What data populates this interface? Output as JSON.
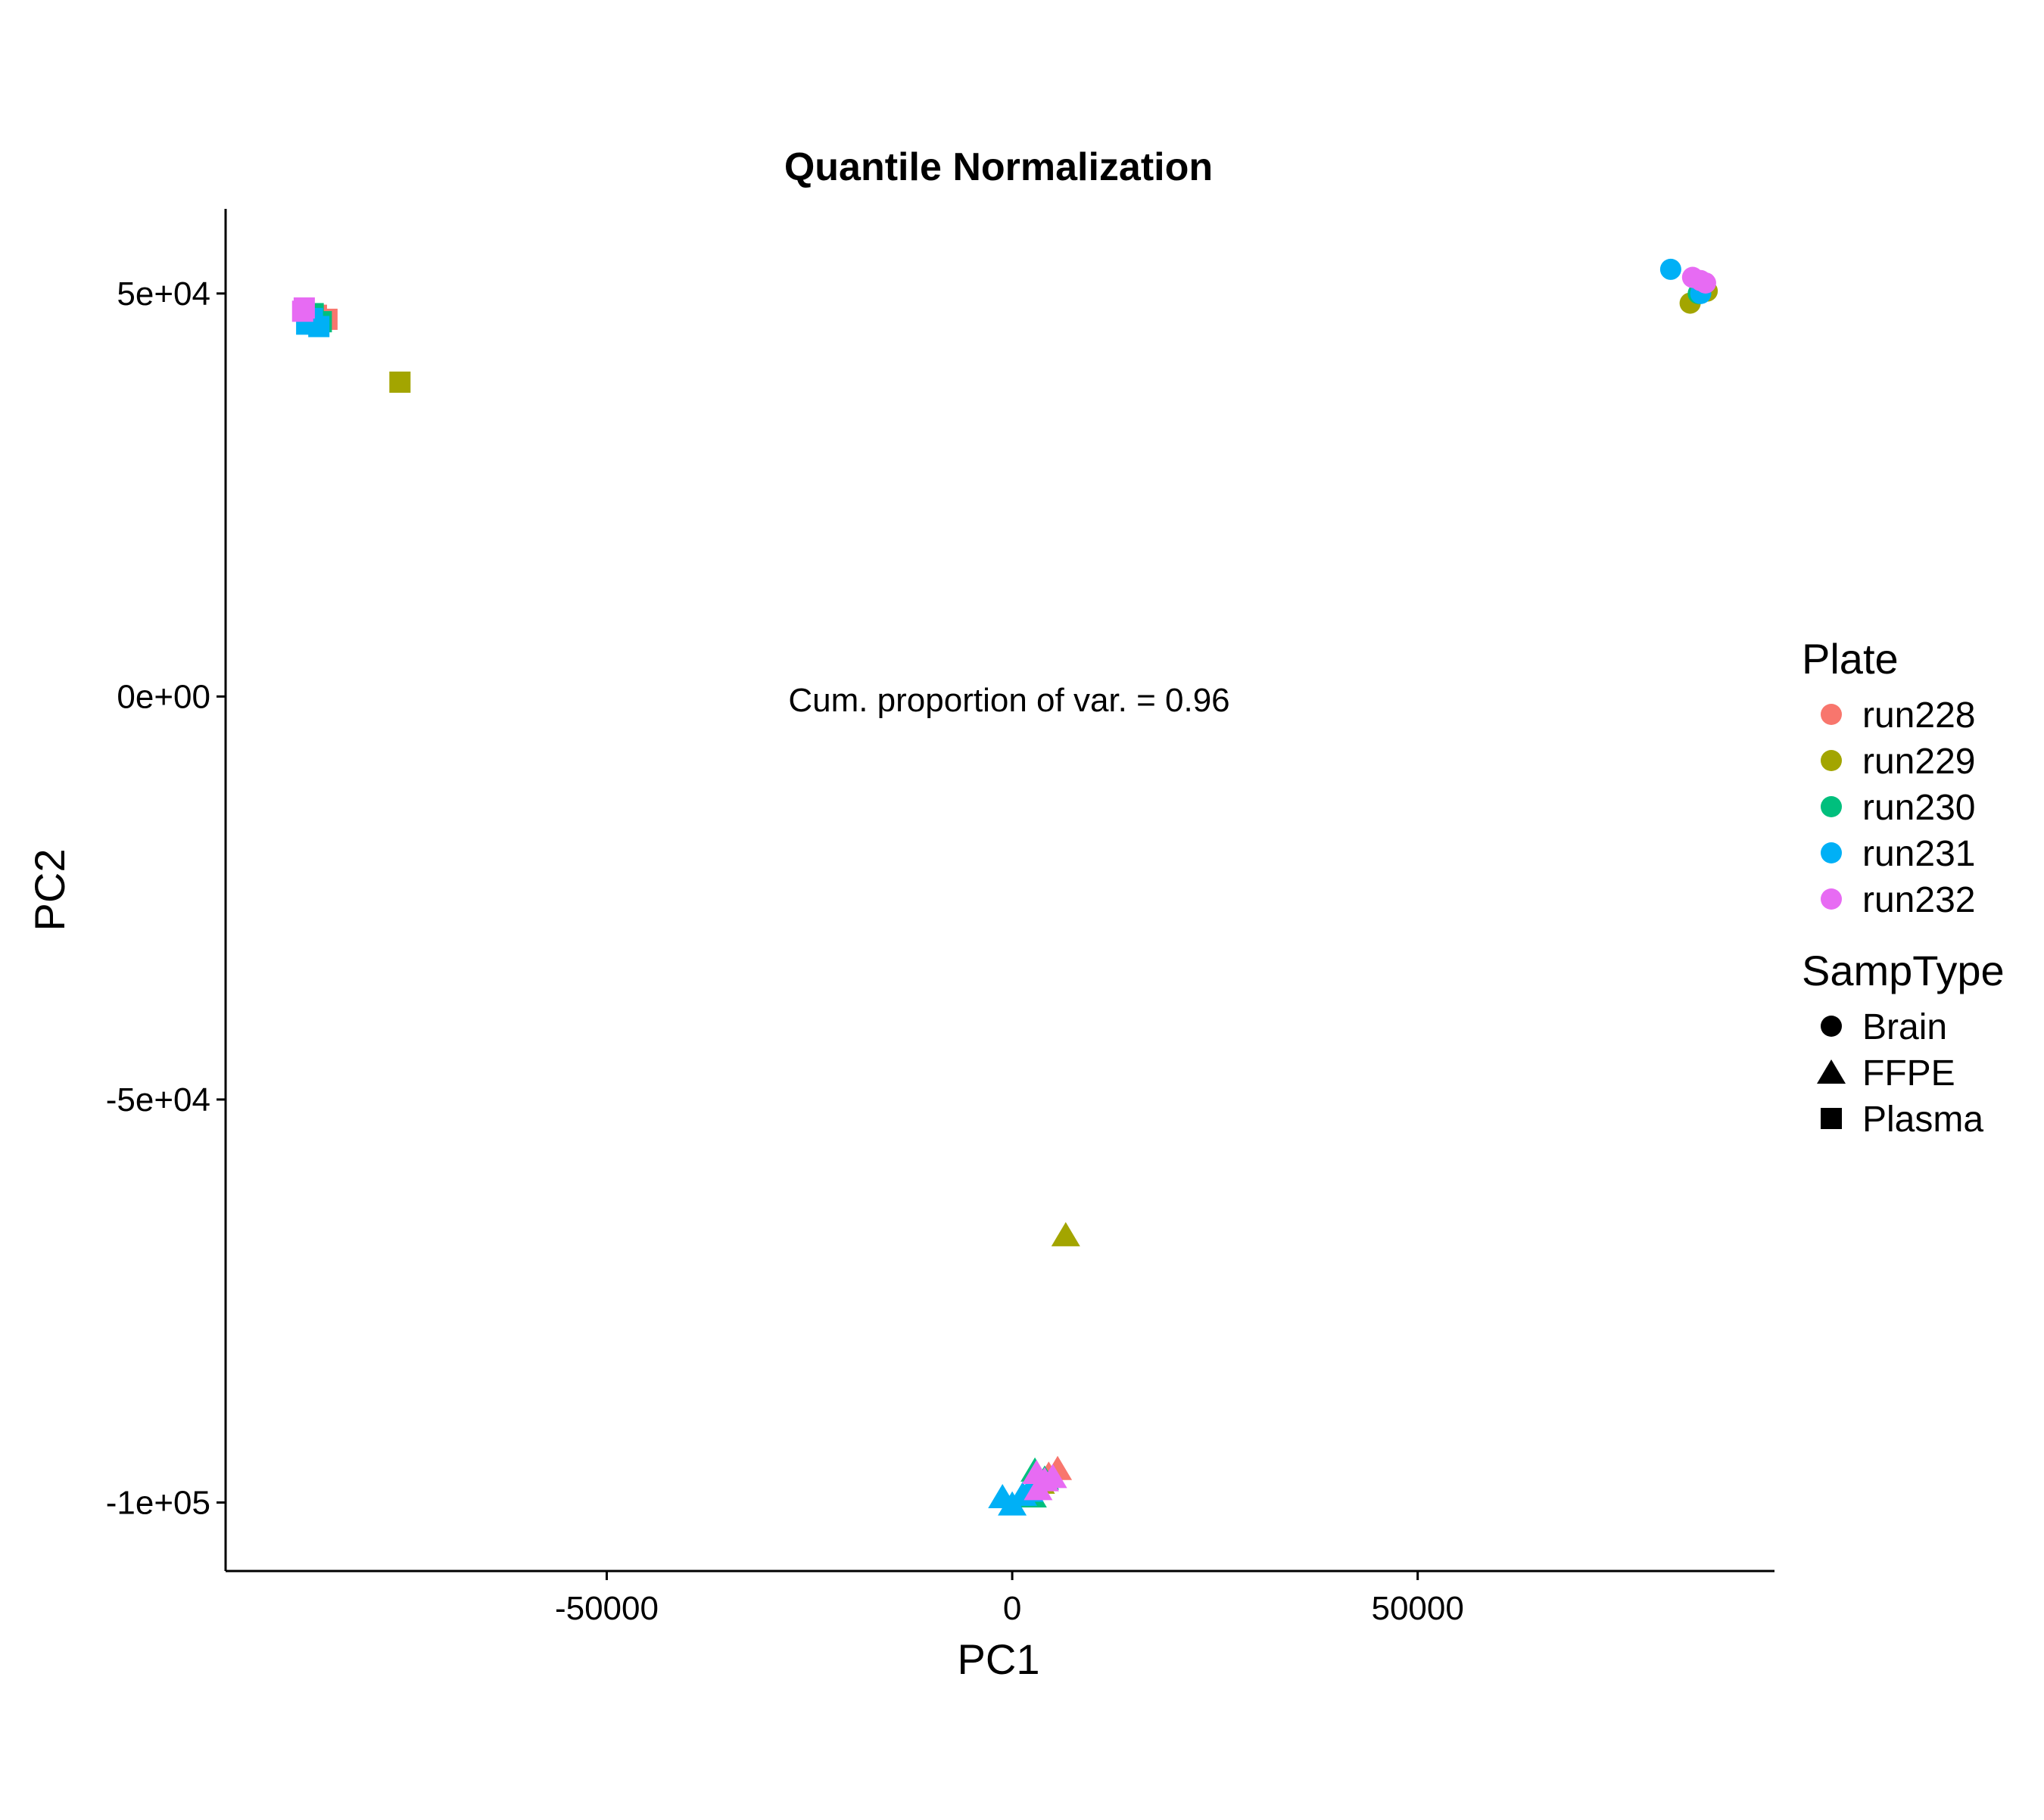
{
  "chart_data": {
    "type": "scatter",
    "title": "Quantile Normalization",
    "xlabel": "PC1",
    "ylabel": "PC2",
    "xlim": [
      -97000,
      94000
    ],
    "ylim": [
      -108500,
      60500
    ],
    "x_ticks": [
      {
        "value": -50000,
        "label": "-50000"
      },
      {
        "value": 0,
        "label": "0"
      },
      {
        "value": 50000,
        "label": "50000"
      }
    ],
    "y_ticks": [
      {
        "value": 50000,
        "label": "5e+04"
      },
      {
        "value": 0,
        "label": "0e+00"
      },
      {
        "value": -50000,
        "label": "-5e+04"
      },
      {
        "value": -100000,
        "label": "-1e+05"
      }
    ],
    "grid": false,
    "annotation": "Cum. proportion of var. = 0.96",
    "legend": {
      "placement": "right",
      "color_title": "Plate",
      "shape_title": "SampType",
      "plates": [
        {
          "name": "run228",
          "color": "#F8766D"
        },
        {
          "name": "run229",
          "color": "#A3A500"
        },
        {
          "name": "run230",
          "color": "#00BF7D"
        },
        {
          "name": "run231",
          "color": "#00B0F6"
        },
        {
          "name": "run232",
          "color": "#E76BF3"
        }
      ],
      "samp_types": [
        {
          "name": "Brain",
          "shape": "circle"
        },
        {
          "name": "FFPE",
          "shape": "triangle"
        },
        {
          "name": "Plasma",
          "shape": "square"
        }
      ]
    },
    "series": [
      {
        "plate": "run228",
        "samp_type": "Plasma",
        "points": [
          [
            -84500,
            46800
          ],
          [
            -85800,
            47300
          ]
        ]
      },
      {
        "plate": "run229",
        "samp_type": "Plasma",
        "points": [
          [
            -75500,
            39000
          ]
        ]
      },
      {
        "plate": "run230",
        "samp_type": "Plasma",
        "points": [
          [
            -86200,
            47500
          ],
          [
            -85200,
            46500
          ]
        ]
      },
      {
        "plate": "run231",
        "samp_type": "Plasma",
        "points": [
          [
            -87000,
            46200
          ],
          [
            -85500,
            45900
          ],
          [
            -86300,
            46900
          ]
        ]
      },
      {
        "plate": "run232",
        "samp_type": "Plasma",
        "points": [
          [
            -87500,
            47800
          ],
          [
            -87300,
            48200
          ]
        ]
      },
      {
        "plate": "run228",
        "samp_type": "Brain",
        "points": [
          [
            85500,
            50600
          ],
          [
            84800,
            51100
          ]
        ]
      },
      {
        "plate": "run229",
        "samp_type": "Brain",
        "points": [
          [
            83600,
            48800
          ],
          [
            85700,
            50300
          ]
        ]
      },
      {
        "plate": "run230",
        "samp_type": "Brain",
        "points": [
          [
            85000,
            51200
          ],
          [
            84600,
            50000
          ]
        ]
      },
      {
        "plate": "run231",
        "samp_type": "Brain",
        "points": [
          [
            81200,
            53000
          ],
          [
            84900,
            50000
          ]
        ]
      },
      {
        "plate": "run232",
        "samp_type": "Brain",
        "points": [
          [
            83900,
            52000
          ],
          [
            84900,
            51600
          ],
          [
            85500,
            51300
          ]
        ]
      },
      {
        "plate": "run228",
        "samp_type": "FFPE",
        "points": [
          [
            5600,
            -95800
          ],
          [
            4500,
            -96500
          ]
        ]
      },
      {
        "plate": "run229",
        "samp_type": "FFPE",
        "points": [
          [
            6600,
            -66800
          ],
          [
            3500,
            -97500
          ]
        ]
      },
      {
        "plate": "run230",
        "samp_type": "FFPE",
        "points": [
          [
            2800,
            -96000
          ],
          [
            2500,
            -99200
          ],
          [
            4000,
            -97000
          ]
        ]
      },
      {
        "plate": "run231",
        "samp_type": "FFPE",
        "points": [
          [
            -1200,
            -99300
          ],
          [
            0,
            -100200
          ],
          [
            1300,
            -99000
          ],
          [
            2100,
            -98500
          ]
        ]
      },
      {
        "plate": "run232",
        "samp_type": "FFPE",
        "points": [
          [
            3000,
            -96300
          ],
          [
            4000,
            -97200
          ],
          [
            3200,
            -98300
          ],
          [
            5000,
            -96800
          ]
        ]
      }
    ]
  }
}
